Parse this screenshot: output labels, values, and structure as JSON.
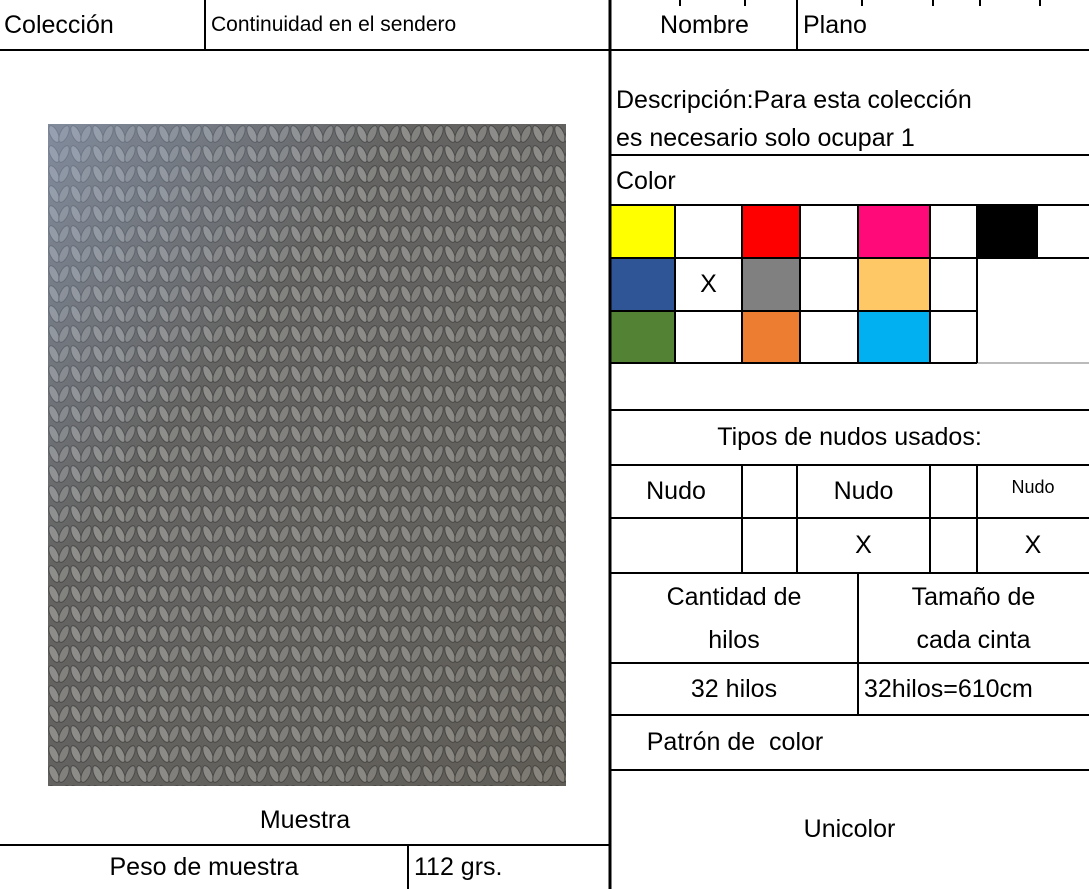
{
  "header": {
    "collection_label": "Colección",
    "collection_value": "Continuidad en el sendero",
    "name_label": "Nombre",
    "name_value": "Plano"
  },
  "sample": {
    "caption": "Muestra",
    "weight_label": "Peso de muestra",
    "weight_value": "112 grs."
  },
  "description": {
    "line1": "Descripción:Para esta colección",
    "line2": "es necesario solo ocupar 1"
  },
  "color": {
    "label": "Color",
    "mark": "X"
  },
  "knots": {
    "title": "Tipos de nudos usados:",
    "headers": [
      "Nudo",
      "Nudo",
      "Nudo"
    ],
    "marks": [
      "X",
      "X"
    ]
  },
  "threads": {
    "count_label": [
      "Cantidad de",
      "hilos"
    ],
    "count_value": "32 hilos",
    "size_label": [
      "Tamaño de",
      "cada cinta"
    ],
    "size_value": "32hilos=610cm"
  },
  "pattern": {
    "label": "Patrón de  color",
    "value": "Unicolor"
  }
}
